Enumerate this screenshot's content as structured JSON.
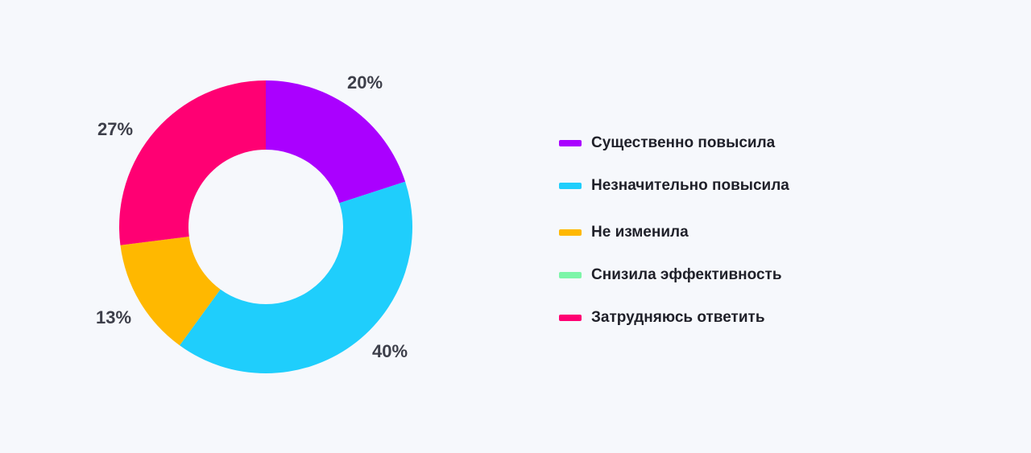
{
  "chart_data": {
    "type": "pie",
    "categories": [
      "Существенно повысила",
      "Незначительно повысила",
      "Не изменила",
      "Снизила эффективность",
      "Затрудняюсь ответить"
    ],
    "values": [
      20,
      40,
      13,
      0,
      27
    ],
    "labels": [
      "20%",
      "40%",
      "13%",
      "",
      "27%"
    ],
    "colors": [
      "#aa00ff",
      "#1fcefc",
      "#ffb800",
      "#7df5a8",
      "#ff0073"
    ],
    "legend_position": "right",
    "donut": true
  }
}
